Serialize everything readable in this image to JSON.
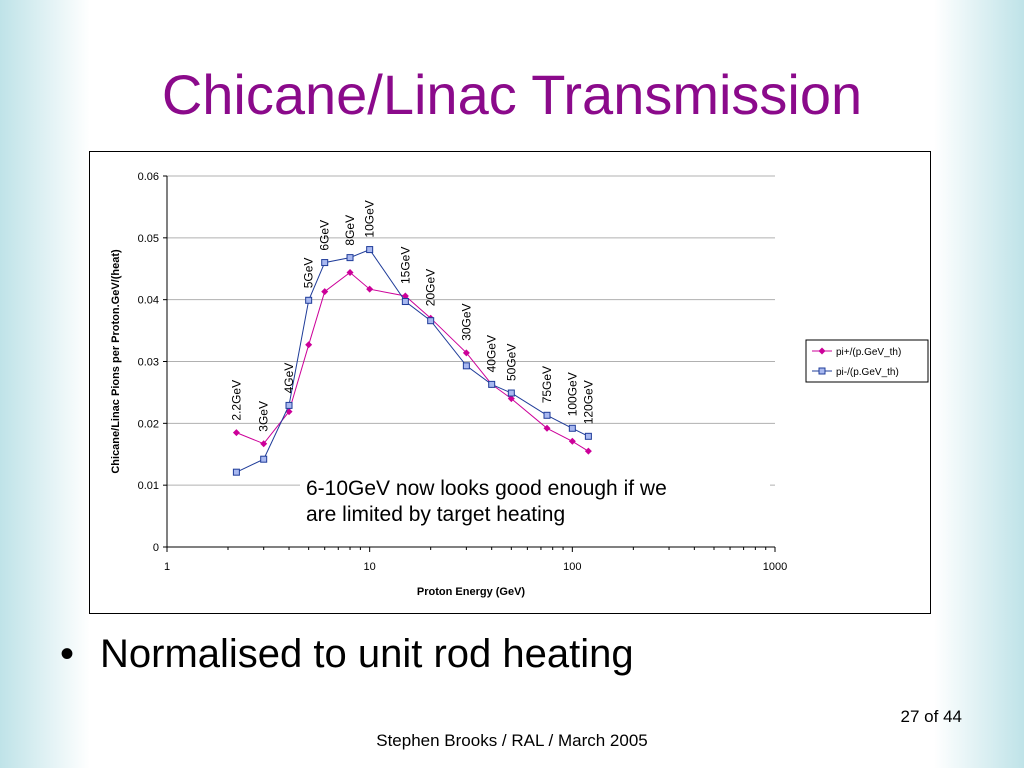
{
  "slide": {
    "title": "Chicane/Linac Transmission",
    "bullet": "Normalised to unit rod heating",
    "bullet_marker": "•",
    "page_number": "27 of 44",
    "footer": "Stephen Brooks / RAL / March 2005"
  },
  "chart_data": {
    "type": "scatter",
    "title": "",
    "xlabel": "Proton Energy (GeV)",
    "ylabel": "Chicane/Linac Pions per Proton.GeV/(heat)",
    "x_scale": "log",
    "xlim": [
      1,
      1000
    ],
    "ylim": [
      0,
      0.06
    ],
    "x_ticks": [
      "1",
      "10",
      "100",
      "1000"
    ],
    "y_ticks": [
      "0",
      "0.01",
      "0.02",
      "0.03",
      "0.04",
      "0.05",
      "0.06"
    ],
    "grid": "horizontal",
    "legend_position": "right",
    "x": [
      2.2,
      3,
      4,
      5,
      6,
      8,
      10,
      15,
      20,
      30,
      40,
      50,
      75,
      100,
      120
    ],
    "series": [
      {
        "name": "pi+/(p.GeV_th)",
        "color": "#cc0099",
        "marker": "diamond",
        "values": [
          0.0185,
          0.0167,
          0.0219,
          0.0327,
          0.0413,
          0.0444,
          0.0417,
          0.0406,
          0.037,
          0.0314,
          0.0263,
          0.024,
          0.0192,
          0.0171,
          0.0155
        ]
      },
      {
        "name": "pi-/(p.GeV_th)",
        "color": "#1f3c99",
        "marker": "square",
        "values": [
          0.0121,
          0.0142,
          0.0229,
          0.0399,
          0.046,
          0.0468,
          0.0481,
          0.0397,
          0.0366,
          0.0293,
          0.0263,
          0.0249,
          0.0213,
          0.0192,
          0.0179
        ]
      }
    ],
    "point_labels": [
      "2.2GeV",
      "3GeV",
      "4GeV",
      "5GeV",
      "6GeV",
      "8GeV",
      "10GeV",
      "15GeV",
      "20GeV",
      "30GeV",
      "40GeV",
      "50GeV",
      "75GeV",
      "100GeV",
      "120GeV"
    ],
    "annotation": "6-10GeV now looks good enough if we are limited by target heating"
  }
}
